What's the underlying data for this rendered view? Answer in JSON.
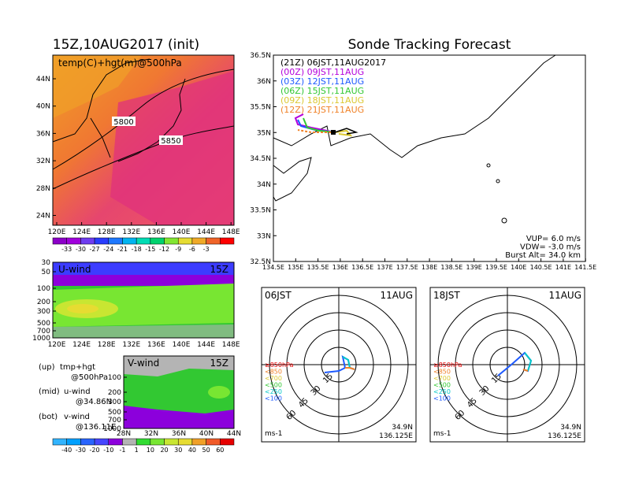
{
  "colors": {
    "accent": "#e0327c",
    "hot": "#f05a3c",
    "ice": "#3c3cff",
    "grass": "#32c832"
  },
  "left_title": "15Z,10AUG2017 (init)",
  "main_title": "Sonde Tracking Forecast",
  "top_map": {
    "label": "temp(C)+hgt(m)@500hPa",
    "lat_ticks": [
      "44N",
      "40N",
      "36N",
      "32N",
      "28N",
      "24N"
    ],
    "lon_ticks": [
      "120E",
      "124E",
      "128E",
      "132E",
      "136E",
      "140E",
      "144E",
      "148E"
    ],
    "contours": [
      "5800",
      "5850"
    ],
    "colorbar_labels": [
      "-33",
      "-30",
      "-27",
      "-24",
      "-21",
      "-18",
      "-15",
      "-12",
      "-9",
      "-6",
      "-3"
    ],
    "colorbar_colors": [
      "#8c00c8",
      "#a000dc",
      "#6e3cf0",
      "#283cff",
      "#1e78ff",
      "#00b4f0",
      "#00dcb4",
      "#00d26e",
      "#82e632",
      "#e6dc32",
      "#f0aa28",
      "#f06428",
      "#ff0000"
    ]
  },
  "uwind": {
    "label": "U-wind",
    "time": "15Z",
    "p_ticks": [
      "30",
      "50",
      "100",
      "200",
      "300",
      "500",
      "700",
      "1000"
    ],
    "lon_ticks": [
      "120E",
      "124E",
      "128E",
      "132E",
      "136E",
      "140E",
      "144E",
      "148E"
    ]
  },
  "vwind": {
    "label": "V-wind",
    "time": "15Z",
    "p_ticks": [
      "100",
      "200",
      "300",
      "500",
      "700",
      "1000"
    ],
    "lat_ticks": [
      "28N",
      "32N",
      "36N",
      "40N",
      "44N"
    ]
  },
  "legend_notes": [
    {
      "key": "(up)",
      "line1": "tmp+hgt",
      "line2": "@500hPa"
    },
    {
      "key": "(mid)",
      "line1": "u-wind",
      "line2": "@34.86N"
    },
    {
      "key": "(bot)",
      "line1": "v-wind",
      "line2": "@136.11E"
    }
  ],
  "wind_colorbar": {
    "labels": [
      "-40",
      "-30",
      "-20",
      "-10",
      "-1",
      "1",
      "10",
      "20",
      "30",
      "40",
      "50",
      "60"
    ],
    "colors": [
      "#32b4ff",
      "#00a0ff",
      "#2864ff",
      "#4646ff",
      "#8c00dc",
      "#b4b4b4",
      "#32dc32",
      "#78e632",
      "#c8e632",
      "#e6dc32",
      "#f0a028",
      "#f05a28",
      "#e60000"
    ]
  },
  "track_map": {
    "lat_ticks": [
      "36.5N",
      "36N",
      "35.5N",
      "35N",
      "34.5N",
      "34N",
      "33.5N",
      "33N",
      "32.5N"
    ],
    "lon_ticks": [
      "134.5E",
      "135E",
      "135.5E",
      "136E",
      "136.5E",
      "137E",
      "137.5E",
      "138E",
      "138.5E",
      "139E",
      "139.5E",
      "140E",
      "140.5E",
      "141E",
      "141.5E"
    ],
    "runs": [
      {
        "label": "(21Z)  06JST,11AUG2017",
        "color": "#000000"
      },
      {
        "label": "(00Z)  09JST,11AUG",
        "color": "#b400dc"
      },
      {
        "label": "(03Z)  12JST,11AUG",
        "color": "#1e5aff"
      },
      {
        "label": "(06Z)  15JST,11AUG",
        "color": "#32c832"
      },
      {
        "label": "(09Z)  18JST,11AUG",
        "color": "#dcc832"
      },
      {
        "label": "(12Z)  21JST,11AUG",
        "color": "#f08228"
      }
    ],
    "params": [
      "VUP=  6.0 m/s",
      "VDW= -3.0 m/s",
      "Burst Alt= 34.0 km"
    ]
  },
  "polar_plots": [
    {
      "time": "06JST",
      "date": "11AUG",
      "lat": "34.9N",
      "lon": "136.125E",
      "unit": "ms-1",
      "rings": [
        "15",
        "30",
        "45",
        "60"
      ]
    },
    {
      "time": "18JST",
      "date": "11AUG",
      "lat": "34.9N",
      "lon": "136.125E",
      "unit": "ms-1",
      "rings": [
        "15",
        "30",
        "45",
        "60"
      ]
    }
  ],
  "polar_legend": [
    {
      "label": "≥850hPa",
      "color": "#e60000"
    },
    {
      "label": "<850",
      "color": "#f08228"
    },
    {
      "label": "<700",
      "color": "#dcc832"
    },
    {
      "label": "<500",
      "color": "#32c832"
    },
    {
      "label": "<250",
      "color": "#00c8c8"
    },
    {
      "label": "<100",
      "color": "#1e5aff"
    }
  ],
  "chart_data": [
    {
      "type": "heatmap",
      "title": "temp(C)+hgt(m)@500hPa",
      "xlim": [
        "120E",
        "148E"
      ],
      "ylim": [
        "24N",
        "44N"
      ],
      "contour_labels": [
        "5800",
        "5850"
      ]
    },
    {
      "type": "heatmap",
      "title": "U-wind",
      "xlim": [
        "120E",
        "148E"
      ],
      "ylim": [
        "1000",
        "30"
      ]
    },
    {
      "type": "heatmap",
      "title": "V-wind",
      "xlim": [
        "28N",
        "44N"
      ],
      "ylim": [
        "1000",
        "100"
      ]
    },
    {
      "type": "line",
      "title": "Sonde Tracking Forecast",
      "xlim": [
        "134.5E",
        "141.5E"
      ],
      "ylim": [
        "32.5N",
        "36.5N"
      ]
    }
  ]
}
